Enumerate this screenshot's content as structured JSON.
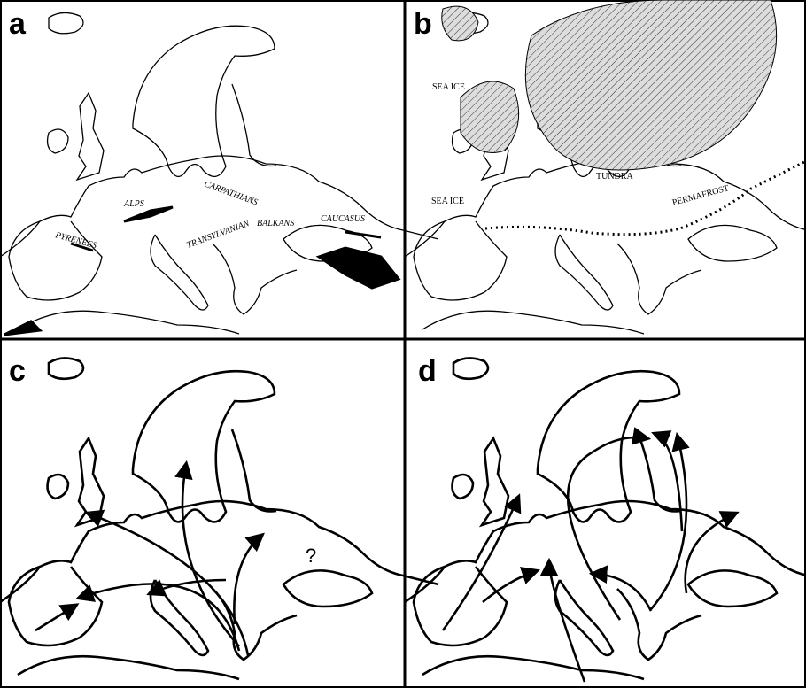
{
  "panels": [
    {
      "label": "a",
      "annotations": [
        "ALPS",
        "PYRENEES",
        "CARPATHIANS",
        "TRANSYLVANIAN",
        "BALKANS",
        "CAUCASUS"
      ]
    },
    {
      "label": "b",
      "annotations": [
        "SEA ICE",
        "SEA ICE",
        "TUNDRA",
        "PERMAFROST"
      ]
    },
    {
      "label": "c",
      "annotations": [
        "?"
      ]
    },
    {
      "label": "d",
      "annotations": []
    }
  ]
}
